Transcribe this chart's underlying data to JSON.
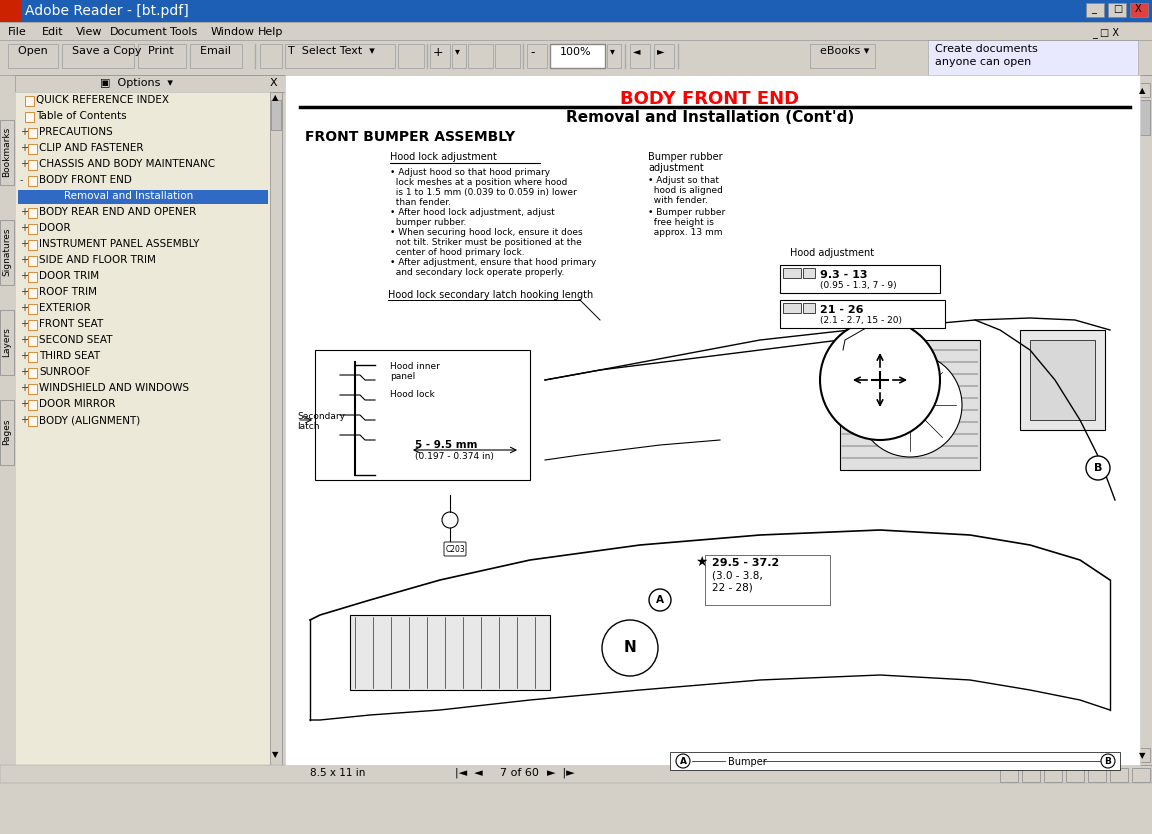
{
  "title_bar": "Adobe Reader - [bt.pdf]",
  "title_bar_color": "#1c5fb5",
  "bg_color": "#d4d0c8",
  "sidebar_bg": "#ece9d8",
  "content_bg": "#ffffff",
  "red_title_color": "#ff0000",
  "nav_items": [
    [
      "  ",
      "QUICK REFERENCE INDEX",
      false
    ],
    [
      "  ",
      "Table of Contents",
      false
    ],
    [
      "+",
      "PRECAUTIONS",
      false
    ],
    [
      "+",
      "CLIP AND FASTENER",
      false
    ],
    [
      "+",
      "CHASSIS AND BODY MAINTENANC",
      false
    ],
    [
      "-",
      "BODY FRONT END",
      false
    ],
    [
      "    ",
      "Removal and Installation",
      true
    ],
    [
      "+",
      "BODY REAR END AND OPENER",
      false
    ],
    [
      "+",
      "DOOR",
      false
    ],
    [
      "+",
      "INSTRUMENT PANEL ASSEMBLY",
      false
    ],
    [
      "+",
      "SIDE AND FLOOR TRIM",
      false
    ],
    [
      "+",
      "DOOR TRIM",
      false
    ],
    [
      "+",
      "ROOF TRIM",
      false
    ],
    [
      "+",
      "EXTERIOR",
      false
    ],
    [
      "+",
      "FRONT SEAT",
      false
    ],
    [
      "+",
      "SECOND SEAT",
      false
    ],
    [
      "+",
      "THIRD SEAT",
      false
    ],
    [
      "+",
      "SUNROOF",
      false
    ],
    [
      "+",
      "WINDSHIELD AND WINDOWS",
      false
    ],
    [
      "+",
      "DOOR MIRROR",
      false
    ],
    [
      "+",
      "BODY (ALIGNMENT)",
      false
    ]
  ],
  "page_title_red": "BODY FRONT END",
  "page_subtitle": "Removal and Installation (Cont'd)",
  "section_title": "FRONT BUMPER ASSEMBLY",
  "page_number": "7 of 60",
  "status_bar_text": "8.5 x 11 in"
}
